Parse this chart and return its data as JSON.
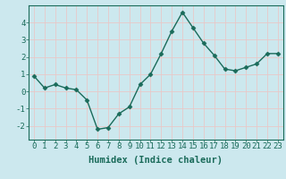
{
  "x": [
    0,
    1,
    2,
    3,
    4,
    5,
    6,
    7,
    8,
    9,
    10,
    11,
    12,
    13,
    14,
    15,
    16,
    17,
    18,
    19,
    20,
    21,
    22,
    23
  ],
  "y": [
    0.9,
    0.2,
    0.4,
    0.2,
    0.1,
    -0.5,
    -2.2,
    -2.1,
    -1.3,
    -0.9,
    0.4,
    1.0,
    2.2,
    3.5,
    4.6,
    3.7,
    2.8,
    2.1,
    1.3,
    1.2,
    1.4,
    1.6,
    2.2,
    2.2
  ],
  "line_color": "#1a6b5a",
  "marker": "D",
  "marker_size": 2.5,
  "bg_color": "#cce8ee",
  "grid_color": "#e8c8c8",
  "xlabel": "Humidex (Indice chaleur)",
  "ylim": [
    -2.8,
    5.0
  ],
  "xlim": [
    -0.5,
    23.5
  ],
  "yticks": [
    -2,
    -1,
    0,
    1,
    2,
    3,
    4
  ],
  "xticks": [
    0,
    1,
    2,
    3,
    4,
    5,
    6,
    7,
    8,
    9,
    10,
    11,
    12,
    13,
    14,
    15,
    16,
    17,
    18,
    19,
    20,
    21,
    22,
    23
  ],
  "xlabel_fontsize": 7.5,
  "tick_fontsize": 6.5,
  "line_width": 1.0
}
